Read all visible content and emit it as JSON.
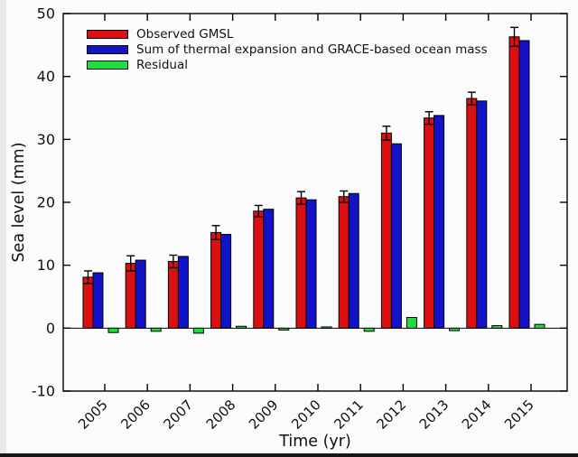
{
  "chart_data": {
    "type": "bar",
    "title": "",
    "xlabel": "Time (yr)",
    "ylabel": "Sea level (mm)",
    "ylim": [
      -10,
      50
    ],
    "yticks": [
      -10,
      0,
      10,
      20,
      30,
      40,
      50
    ],
    "grid": false,
    "zero_line": true,
    "legend_position": "top-left",
    "categories": [
      "2005",
      "2006",
      "2007",
      "2008",
      "2009",
      "2010",
      "2011",
      "2012",
      "2013",
      "2014",
      "2015"
    ],
    "series": [
      {
        "name": "Observed GMSL",
        "color": "#dc1010",
        "values": [
          8.1,
          10.3,
          10.6,
          15.2,
          18.6,
          20.7,
          20.9,
          31.0,
          33.4,
          36.5,
          46.3
        ],
        "errors": [
          1.0,
          1.2,
          1.0,
          1.1,
          0.9,
          1.0,
          0.9,
          1.1,
          1.0,
          1.0,
          1.5
        ]
      },
      {
        "name": "Sum of thermal expansion and GRACE-based ocean mass",
        "color": "#1212c8",
        "values": [
          8.8,
          10.8,
          11.4,
          14.9,
          18.9,
          20.4,
          21.4,
          29.3,
          33.8,
          36.1,
          45.7
        ]
      },
      {
        "name": "Residual",
        "color": "#1fdd3f",
        "values": [
          -0.7,
          -0.5,
          -0.8,
          0.3,
          -0.3,
          0.2,
          -0.5,
          1.7,
          -0.4,
          0.4,
          0.6
        ]
      }
    ],
    "colors": {
      "axis": "#000000",
      "background": "#fbfbfb",
      "bar_edge": "#000000",
      "error_bar": "#000000"
    }
  }
}
